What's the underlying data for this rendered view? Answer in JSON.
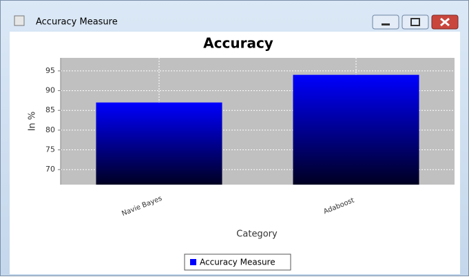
{
  "window": {
    "title": "Accuracy Measure"
  },
  "chart_data": {
    "type": "bar",
    "title": "Accuracy",
    "x_label": "Category",
    "y_label": "In %",
    "categories": [
      "Navie Bayes",
      "Adaboost"
    ],
    "series": [
      {
        "name": "Accuracy Measure",
        "color": "#0000ff",
        "values": [
          87,
          94
        ]
      }
    ],
    "ylim": [
      66.2,
      98.3
    ],
    "yticks": [
      70,
      75,
      80,
      85,
      90,
      95
    ],
    "grid": true,
    "legend": "bottom"
  }
}
